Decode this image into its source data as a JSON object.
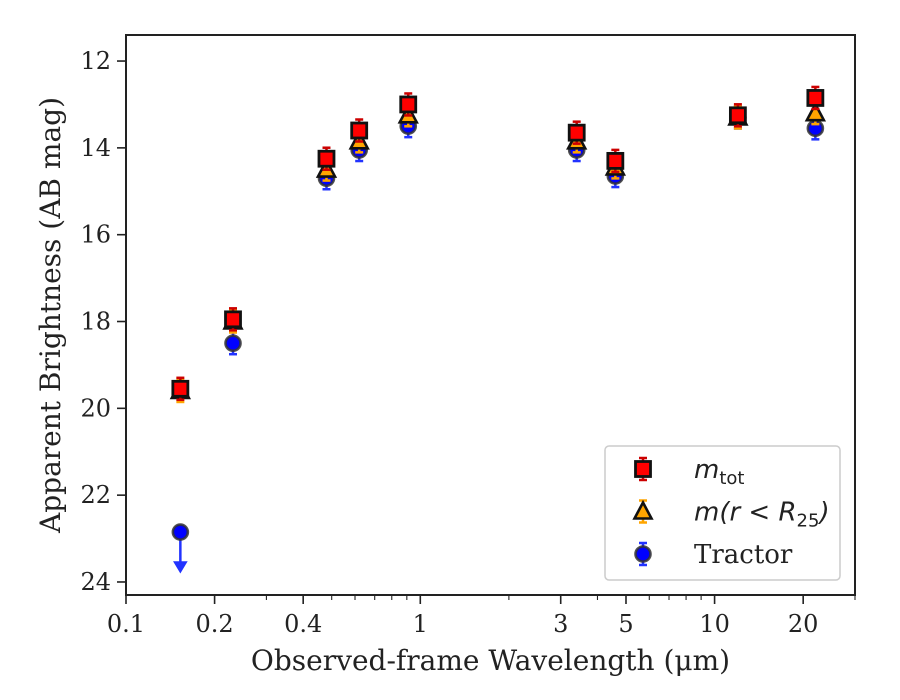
{
  "chart_data": {
    "type": "scatter",
    "title": "",
    "xlabel": "Observed-frame Wavelength (μm)",
    "ylabel": "Apparent Brightness (AB mag)",
    "xscale": "log",
    "xlim": [
      0.1,
      30
    ],
    "ylim": [
      24.3,
      11.4
    ],
    "y_inverted": true,
    "grid": false,
    "legend_position": "lower-right",
    "x_ticks": [
      0.1,
      0.2,
      0.4,
      1,
      3,
      5,
      10,
      20
    ],
    "x_tick_labels": [
      "0.1",
      "0.2",
      "0.4",
      "1",
      "3",
      "5",
      "10",
      "20"
    ],
    "y_ticks": [
      12,
      14,
      16,
      18,
      20,
      22,
      24
    ],
    "y_tick_labels": [
      "12",
      "14",
      "16",
      "18",
      "20",
      "22",
      "24"
    ],
    "series": [
      {
        "key": "m_tot",
        "legend_base": "m",
        "legend_sub": "tot",
        "legend_tail": "",
        "marker": "square",
        "color": "#ff0000",
        "errcolor": "#cc0000",
        "x": [
          0.153,
          0.231,
          0.48,
          0.62,
          0.91,
          3.4,
          4.6,
          12.0,
          22.0
        ],
        "y": [
          19.55,
          17.95,
          14.25,
          13.6,
          13.0,
          13.65,
          14.3,
          13.25,
          12.85
        ]
      },
      {
        "key": "m_r_lt_R25",
        "legend_base": "m(r < R",
        "legend_sub": "25",
        "legend_tail": ")",
        "marker": "triangle",
        "color": "#ffa500",
        "errcolor": "#ffa500",
        "x": [
          0.153,
          0.231,
          0.48,
          0.62,
          0.91,
          3.4,
          4.6,
          12.0,
          22.0
        ],
        "y": [
          19.6,
          18.0,
          14.5,
          13.85,
          13.25,
          13.85,
          14.45,
          13.3,
          13.2
        ]
      },
      {
        "key": "tractor",
        "legend_label": "Tractor",
        "marker": "circle",
        "color": "#0000ff",
        "errcolor": "#2233ff",
        "x": [
          0.153,
          0.231,
          0.48,
          0.62,
          0.91,
          3.4,
          4.6,
          12.0,
          22.0
        ],
        "y": [
          22.85,
          18.5,
          14.7,
          14.05,
          13.5,
          14.05,
          14.65,
          13.3,
          13.55
        ],
        "upper_limit_index": 0
      }
    ]
  }
}
